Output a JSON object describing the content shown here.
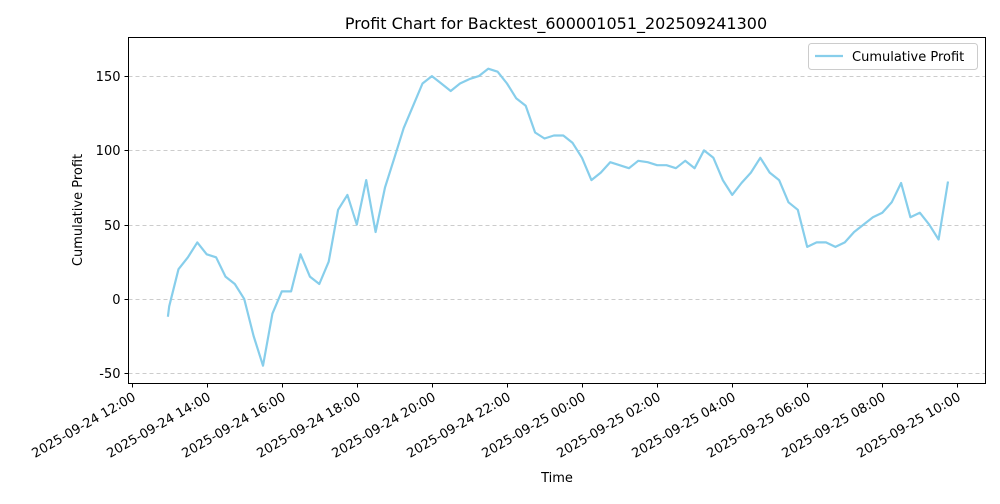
{
  "chart_data": {
    "type": "line",
    "title": "Profit Chart for Backtest_600001051_202509241300",
    "xlabel": "Time",
    "ylabel": "Cumulative Profit",
    "ylim": [
      -57,
      176
    ],
    "xlim": [
      "2025-09-24 11:55",
      "2025-09-25 10:45"
    ],
    "grid": "horizontal dashed",
    "legend": "top-right",
    "x_ticks": [
      "2025-09-24 12:00",
      "2025-09-24 14:00",
      "2025-09-24 16:00",
      "2025-09-24 18:00",
      "2025-09-24 20:00",
      "2025-09-24 22:00",
      "2025-09-25 00:00",
      "2025-09-25 02:00",
      "2025-09-25 04:00",
      "2025-09-25 06:00",
      "2025-09-25 08:00",
      "2025-09-25 10:00"
    ],
    "y_ticks": [
      -50,
      0,
      50,
      100,
      150
    ],
    "series": [
      {
        "name": "Cumulative Profit",
        "color": "#87CEEB",
        "x": [
          "2025-09-24 12:58",
          "2025-09-24 13:00",
          "2025-09-24 13:15",
          "2025-09-24 13:30",
          "2025-09-24 13:45",
          "2025-09-24 14:00",
          "2025-09-24 14:15",
          "2025-09-24 14:30",
          "2025-09-24 14:45",
          "2025-09-24 15:00",
          "2025-09-24 15:15",
          "2025-09-24 15:30",
          "2025-09-24 15:45",
          "2025-09-24 16:00",
          "2025-09-24 16:15",
          "2025-09-24 16:30",
          "2025-09-24 16:45",
          "2025-09-24 17:00",
          "2025-09-24 17:15",
          "2025-09-24 17:30",
          "2025-09-24 17:45",
          "2025-09-24 18:00",
          "2025-09-24 18:15",
          "2025-09-24 18:30",
          "2025-09-24 18:45",
          "2025-09-24 19:00",
          "2025-09-24 19:15",
          "2025-09-24 19:30",
          "2025-09-24 19:45",
          "2025-09-24 20:00",
          "2025-09-24 20:15",
          "2025-09-24 20:30",
          "2025-09-24 20:45",
          "2025-09-24 21:00",
          "2025-09-24 21:15",
          "2025-09-24 21:30",
          "2025-09-24 21:45",
          "2025-09-24 22:00",
          "2025-09-24 22:15",
          "2025-09-24 22:30",
          "2025-09-24 22:45",
          "2025-09-24 23:00",
          "2025-09-24 23:15",
          "2025-09-24 23:30",
          "2025-09-24 23:45",
          "2025-09-25 00:00",
          "2025-09-25 00:15",
          "2025-09-25 00:30",
          "2025-09-25 00:45",
          "2025-09-25 01:00",
          "2025-09-25 01:15",
          "2025-09-25 01:30",
          "2025-09-25 01:45",
          "2025-09-25 02:00",
          "2025-09-25 02:15",
          "2025-09-25 02:30",
          "2025-09-25 02:45",
          "2025-09-25 03:00",
          "2025-09-25 03:15",
          "2025-09-25 03:30",
          "2025-09-25 03:45",
          "2025-09-25 04:00",
          "2025-09-25 04:15",
          "2025-09-25 04:30",
          "2025-09-25 04:45",
          "2025-09-25 05:00",
          "2025-09-25 05:15",
          "2025-09-25 05:30",
          "2025-09-25 05:45",
          "2025-09-25 06:00",
          "2025-09-25 06:15",
          "2025-09-25 06:30",
          "2025-09-25 06:45",
          "2025-09-25 07:00",
          "2025-09-25 07:15",
          "2025-09-25 07:30",
          "2025-09-25 07:45",
          "2025-09-25 08:00",
          "2025-09-25 08:15",
          "2025-09-25 08:30",
          "2025-09-25 08:45",
          "2025-09-25 09:00",
          "2025-09-25 09:15",
          "2025-09-25 09:30",
          "2025-09-25 09:45"
        ],
        "y": [
          -12,
          -5,
          20,
          28,
          38,
          30,
          28,
          15,
          10,
          0,
          -25,
          -45,
          -10,
          5,
          5,
          30,
          15,
          10,
          25,
          60,
          70,
          50,
          80,
          45,
          75,
          95,
          115,
          130,
          145,
          150,
          145,
          140,
          145,
          148,
          150,
          155,
          153,
          145,
          135,
          130,
          112,
          108,
          110,
          110,
          105,
          95,
          80,
          85,
          92,
          90,
          88,
          93,
          92,
          90,
          90,
          88,
          93,
          88,
          100,
          95,
          80,
          70,
          78,
          85,
          95,
          85,
          80,
          65,
          60,
          35,
          38,
          38,
          35,
          38,
          45,
          50,
          55,
          58,
          65,
          78,
          55,
          58,
          50,
          40,
          79
        ]
      }
    ]
  }
}
